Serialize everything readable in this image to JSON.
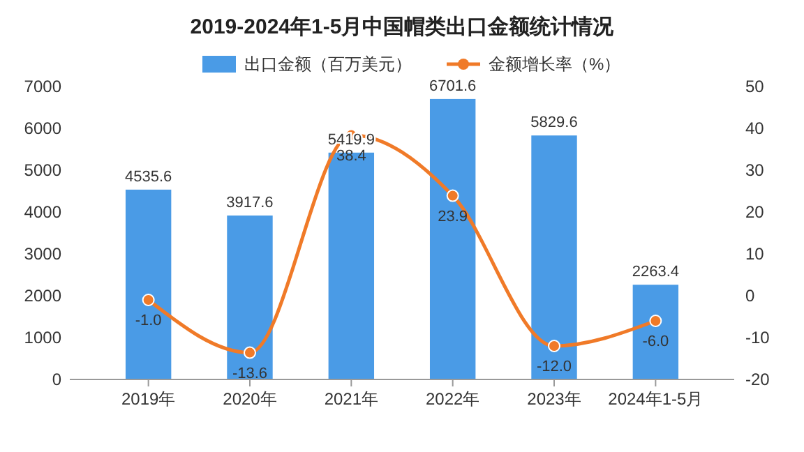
{
  "chart_data": {
    "type": "bar",
    "title": "2019-2024年1-5月中国帽类出口金额统计情况",
    "categories": [
      "2019年",
      "2020年",
      "2021年",
      "2022年",
      "2023年",
      "2024年1-5月"
    ],
    "series": [
      {
        "name": "出口金额（百万美元）",
        "color": "#4a9be6",
        "values": [
          4535.6,
          3917.6,
          5419.9,
          6701.6,
          5829.6,
          2263.4
        ]
      },
      {
        "name": "金额增长率（%）",
        "type": "line",
        "axis": "y2",
        "color": "#f07a28",
        "marker": "circle",
        "values": [
          -1.0,
          -13.6,
          38.4,
          23.9,
          -12.0,
          -6.0
        ],
        "value_labels": [
          "-1.0",
          "-13.6",
          "38.4",
          "23.9",
          "-12.0",
          "-6.0"
        ]
      }
    ],
    "ylim": [
      0,
      7000
    ],
    "yticks": [
      0,
      1000,
      2000,
      3000,
      4000,
      5000,
      6000,
      7000
    ],
    "y2lim": [
      -20,
      50
    ],
    "y2ticks": [
      -20,
      -10,
      0,
      10,
      20,
      30,
      40,
      50
    ],
    "data_labels": true,
    "legend": "top",
    "grid": false
  }
}
